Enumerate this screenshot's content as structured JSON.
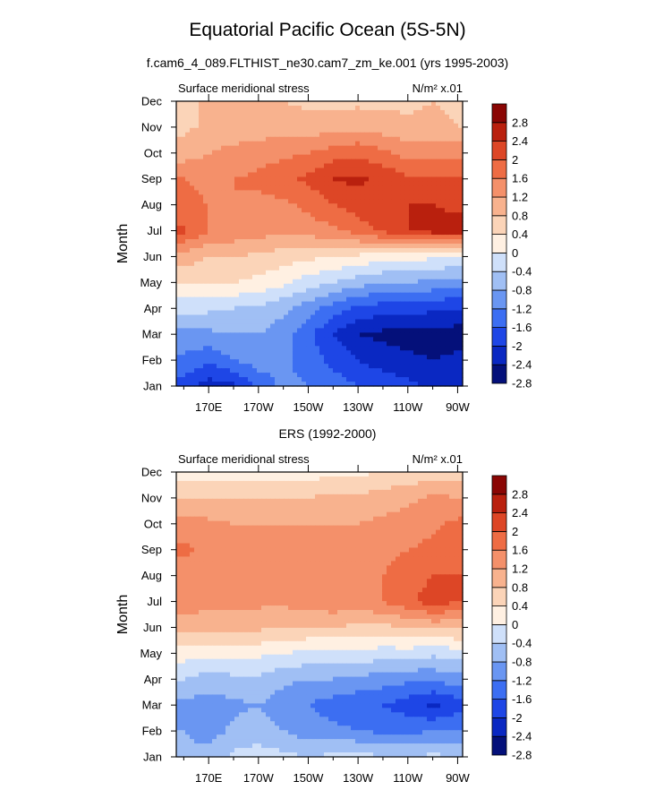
{
  "title": "Equatorial Pacific Ocean (5S-5N)",
  "subtitle": "f.cam6_4_089.FLTHIST_ne30.cam7_zm_ke.001 (yrs 1995-2003)",
  "panel2_title": "ERS (1992-2000)",
  "palette": [
    "#04107a",
    "#0a28c2",
    "#1e46e6",
    "#3c6ef2",
    "#6a96f2",
    "#a0bff4",
    "#cfe0fa",
    "#fff0e2",
    "#fbd4b8",
    "#f8b28e",
    "#f4906a",
    "#ee6c44",
    "#dd4626",
    "#b9200e",
    "#8a0604"
  ],
  "chart_data": [
    {
      "type": "heatmap",
      "panel": "model",
      "left_label": "Surface meridional stress",
      "units_label": "N/m² x.01",
      "ylabel": "Month",
      "x": [
        160,
        170,
        180,
        190,
        200,
        210,
        220,
        230,
        240,
        250,
        260,
        270
      ],
      "xticks": [
        {
          "v": 170,
          "label": "170E"
        },
        {
          "v": 190,
          "label": "170W"
        },
        {
          "v": 210,
          "label": "150W"
        },
        {
          "v": 230,
          "label": "130W"
        },
        {
          "v": 250,
          "label": "110W"
        },
        {
          "v": 270,
          "label": "90W"
        }
      ],
      "xlim": [
        157,
        272
      ],
      "months": [
        "Jan",
        "Feb",
        "Mar",
        "Apr",
        "May",
        "Jun",
        "Jul",
        "Aug",
        "Sep",
        "Oct",
        "Nov",
        "Dec"
      ],
      "z": [
        [
          -2.2,
          -2.6,
          -2.5,
          -1.9,
          -1.5,
          -1.6,
          -1.8,
          -2.0,
          -2.1,
          -2.3,
          -2.5,
          -2.5
        ],
        [
          -1.7,
          -1.9,
          -1.6,
          -1.4,
          -1.5,
          -1.8,
          -2.1,
          -2.4,
          -2.6,
          -2.7,
          -2.8,
          -2.7
        ],
        [
          -1.3,
          -1.3,
          -1.2,
          -1.2,
          -1.4,
          -1.9,
          -2.4,
          -2.8,
          -2.9,
          -3.0,
          -3.0,
          -3.0
        ],
        [
          -0.7,
          -0.7,
          -0.8,
          -0.9,
          -1.1,
          -1.4,
          -1.8,
          -2.1,
          -2.2,
          -2.2,
          -2.3,
          -2.4
        ],
        [
          0.1,
          0.1,
          0.0,
          -0.1,
          -0.3,
          -0.6,
          -0.8,
          -1.0,
          -1.2,
          -1.2,
          -1.3,
          -1.4
        ],
        [
          0.6,
          0.4,
          0.4,
          0.3,
          0.2,
          0.1,
          0.0,
          -0.1,
          -0.2,
          -0.3,
          -0.3,
          -0.4
        ],
        [
          1.7,
          1.2,
          1.1,
          1.0,
          0.9,
          1.0,
          1.1,
          1.4,
          1.7,
          2.0,
          2.2,
          2.2
        ],
        [
          1.3,
          1.2,
          1.2,
          1.1,
          1.1,
          1.3,
          1.6,
          1.8,
          1.9,
          2.0,
          2.0,
          1.9
        ],
        [
          1.2,
          1.1,
          1.2,
          1.3,
          1.5,
          1.7,
          2.0,
          2.1,
          1.9,
          1.7,
          1.7,
          1.6
        ],
        [
          0.6,
          0.8,
          0.9,
          1.0,
          1.1,
          1.2,
          1.4,
          1.5,
          1.3,
          1.0,
          1.1,
          1.1
        ],
        [
          0.3,
          0.5,
          0.6,
          0.6,
          0.6,
          0.6,
          0.6,
          0.7,
          0.6,
          0.5,
          0.5,
          0.4
        ],
        [
          0.2,
          0.5,
          0.5,
          0.5,
          0.4,
          0.3,
          0.3,
          0.3,
          0.3,
          0.3,
          0.4,
          0.3
        ]
      ],
      "levels": [
        -2.8,
        -2.4,
        -2.0,
        -1.6,
        -1.2,
        -0.8,
        -0.4,
        0,
        0.4,
        0.8,
        1.2,
        1.6,
        2.0,
        2.4,
        2.8
      ],
      "colorbar_labels": [
        "2.8",
        "2.4",
        "2",
        "1.6",
        "1.2",
        "0.8",
        "0.4",
        "0",
        "-0.4",
        "-0.8",
        "-1.2",
        "-1.6",
        "-2",
        "-2.4",
        "-2.8"
      ]
    },
    {
      "type": "heatmap",
      "panel": "observations",
      "left_label": "Surface meridional stress",
      "units_label": "N/m² x.01",
      "ylabel": "Month",
      "x": [
        160,
        170,
        180,
        190,
        200,
        210,
        220,
        230,
        240,
        250,
        260,
        270
      ],
      "xticks": [
        {
          "v": 170,
          "label": "170E"
        },
        {
          "v": 190,
          "label": "170W"
        },
        {
          "v": 210,
          "label": "150W"
        },
        {
          "v": 230,
          "label": "130W"
        },
        {
          "v": 250,
          "label": "110W"
        },
        {
          "v": 270,
          "label": "90W"
        }
      ],
      "xlim": [
        157,
        272
      ],
      "months": [
        "Jan",
        "Feb",
        "Mar",
        "Apr",
        "May",
        "Jun",
        "Jul",
        "Aug",
        "Sep",
        "Oct",
        "Nov",
        "Dec"
      ],
      "z": [
        [
          -1.1,
          -1.0,
          -0.7,
          -0.6,
          -0.7,
          -0.8,
          -0.7,
          -0.6,
          -0.8,
          -0.8,
          -0.7,
          -0.8
        ],
        [
          -1.2,
          -1.4,
          -1.1,
          -1.0,
          -1.2,
          -1.4,
          -1.5,
          -1.6,
          -1.7,
          -1.7,
          -1.6,
          -1.6
        ],
        [
          -1.3,
          -1.4,
          -1.3,
          -1.2,
          -1.4,
          -1.6,
          -1.8,
          -1.9,
          -2.0,
          -2.2,
          -2.5,
          -2.2
        ],
        [
          -0.8,
          -1.0,
          -0.9,
          -0.9,
          -1.1,
          -1.2,
          -1.2,
          -1.3,
          -1.4,
          -1.5,
          -1.5,
          -1.4
        ],
        [
          -0.2,
          -0.3,
          -0.3,
          -0.3,
          -0.4,
          -0.5,
          -0.5,
          -0.5,
          -0.6,
          -0.6,
          -0.7,
          -0.6
        ],
        [
          0.6,
          0.6,
          0.5,
          0.5,
          0.4,
          0.4,
          0.4,
          0.3,
          0.3,
          0.4,
          0.5,
          0.5
        ],
        [
          1.0,
          0.9,
          0.9,
          0.9,
          0.9,
          1.0,
          1.1,
          1.1,
          1.2,
          1.5,
          1.8,
          1.6
        ],
        [
          1.0,
          1.0,
          1.0,
          0.9,
          0.9,
          1.0,
          1.1,
          1.1,
          1.2,
          1.4,
          1.6,
          1.6
        ],
        [
          1.3,
          1.1,
          0.9,
          0.9,
          0.9,
          1.0,
          1.0,
          1.0,
          1.1,
          1.2,
          1.3,
          1.6
        ],
        [
          0.9,
          0.9,
          0.8,
          0.8,
          0.8,
          0.8,
          0.8,
          0.8,
          0.9,
          1.0,
          1.1,
          1.3
        ],
        [
          0.4,
          0.4,
          0.4,
          0.4,
          0.4,
          0.4,
          0.5,
          0.5,
          0.6,
          0.7,
          0.9,
          0.8
        ],
        [
          -0.3,
          -0.2,
          -0.2,
          -0.3,
          -0.2,
          -0.2,
          -0.1,
          -0.1,
          0.0,
          0.1,
          0.1,
          0.1
        ]
      ],
      "levels": [
        -2.8,
        -2.4,
        -2.0,
        -1.6,
        -1.2,
        -0.8,
        -0.4,
        0,
        0.4,
        0.8,
        1.2,
        1.6,
        2.0,
        2.4,
        2.8
      ],
      "colorbar_labels": [
        "2.8",
        "2.4",
        "2",
        "1.6",
        "1.2",
        "0.8",
        "0.4",
        "0",
        "-0.4",
        "-0.8",
        "-1.2",
        "-1.6",
        "-2",
        "-2.4",
        "-2.8"
      ]
    }
  ]
}
